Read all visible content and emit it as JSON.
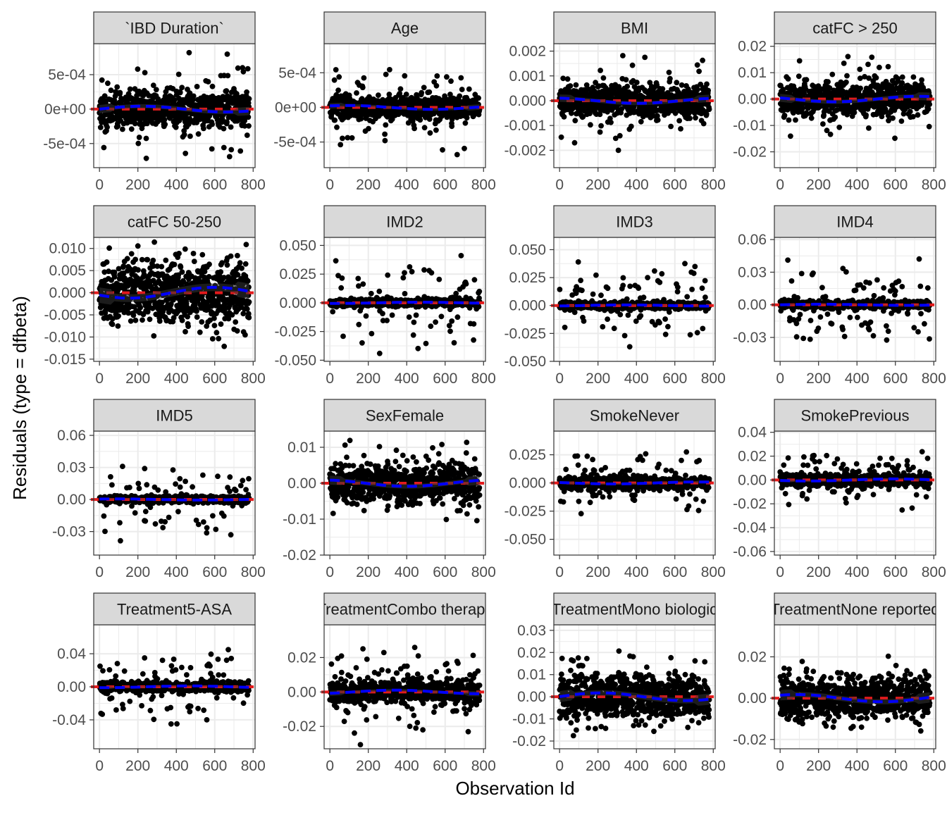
{
  "chart_data": {
    "type": "scatter",
    "xlabel": "Observation Id",
    "ylabel": "Residuals (type = dfbeta)",
    "colors": {
      "points": "#000000",
      "zero_line": "#e31a1c",
      "smooth": "#0000ff",
      "ribbon": "#333333",
      "strip_fill": "#d9d9d9",
      "grid": "#ebebeb",
      "panel_border": "#333333"
    },
    "xlim": [
      -30,
      810
    ],
    "x_ticks": [
      0,
      200,
      400,
      600,
      800
    ],
    "x_tick_labels": [
      "0",
      "200",
      "400",
      "600",
      "800"
    ],
    "n_observations": 780,
    "layout": {
      "rows": 4,
      "cols": 4
    },
    "panels": [
      {
        "title": "`IBD Duration`",
        "ylim": [
          -0.00085,
          0.00095
        ],
        "y_ticks": [
          0.0005,
          0,
          -0.0005
        ],
        "y_tick_labels": [
          "5e-04",
          "0e+00",
          "-5e-04"
        ],
        "core_sd": 0.00012,
        "spread": 0.0009
      },
      {
        "title": "Age",
        "ylim": [
          -0.00087,
          0.00092
        ],
        "y_ticks": [
          0.0005,
          0,
          -0.0005
        ],
        "y_tick_labels": [
          "5e-04",
          "0e+00",
          "-5e-04"
        ],
        "core_sd": 8e-05,
        "spread": 0.0008
      },
      {
        "title": "BMI",
        "ylim": [
          -0.0027,
          0.0023
        ],
        "y_ticks": [
          0.002,
          0.001,
          0,
          -0.001,
          -0.002
        ],
        "y_tick_labels": [
          "0.002",
          "0.001",
          "0.000",
          "-0.001",
          "-0.002"
        ],
        "core_sd": 0.0003,
        "spread": 0.0021
      },
      {
        "title": "catFC > 250",
        "ylim": [
          -0.026,
          0.021
        ],
        "y_ticks": [
          0.02,
          0.01,
          0,
          -0.01,
          -0.02
        ],
        "y_tick_labels": [
          "0.02",
          "0.01",
          "0.00",
          "-0.01",
          "-0.02"
        ],
        "core_sd": 0.003,
        "spread": 0.018
      },
      {
        "title": "catFC 50-250",
        "ylim": [
          -0.0155,
          0.0125
        ],
        "y_ticks": [
          0.01,
          0.005,
          0,
          -0.005,
          -0.01,
          -0.015
        ],
        "y_tick_labels": [
          "0.010",
          "0.005",
          "0.000",
          "-0.005",
          "-0.010",
          "-0.015"
        ],
        "core_sd": 0.0035,
        "spread": 0.012
      },
      {
        "title": "IMD2",
        "ylim": [
          -0.051,
          0.057
        ],
        "y_ticks": [
          0.05,
          0.025,
          0,
          -0.025,
          -0.05
        ],
        "y_tick_labels": [
          "0.050",
          "0.025",
          "0.000",
          "-0.025",
          "-0.050"
        ],
        "core_sd": 0.0015,
        "spread": 0.045
      },
      {
        "title": "IMD3",
        "ylim": [
          -0.05,
          0.061
        ],
        "y_ticks": [
          0.05,
          0.025,
          0,
          -0.025,
          -0.05
        ],
        "y_tick_labels": [
          "0.050",
          "0.025",
          "0.000",
          "-0.025",
          "-0.050"
        ],
        "core_sd": 0.0015,
        "spread": 0.045
      },
      {
        "title": "IMD4",
        "ylim": [
          -0.052,
          0.062
        ],
        "y_ticks": [
          0.06,
          0.03,
          0,
          -0.03
        ],
        "y_tick_labels": [
          "0.06",
          "0.03",
          "0.00",
          "-0.03"
        ],
        "core_sd": 0.0015,
        "spread": 0.045
      },
      {
        "title": "IMD5",
        "ylim": [
          -0.052,
          0.064
        ],
        "y_ticks": [
          0.06,
          0.03,
          0,
          -0.03
        ],
        "y_tick_labels": [
          "0.06",
          "0.03",
          "0.00",
          "-0.03"
        ],
        "core_sd": 0.0015,
        "spread": 0.045
      },
      {
        "title": "SexFemale",
        "ylim": [
          -0.02,
          0.0145
        ],
        "y_ticks": [
          0.01,
          0,
          -0.01,
          -0.02
        ],
        "y_tick_labels": [
          "0.01",
          "0.00",
          "-0.01",
          "-0.02"
        ],
        "core_sd": 0.0025,
        "spread": 0.013
      },
      {
        "title": "SmokeNever",
        "ylim": [
          -0.064,
          0.046
        ],
        "y_ticks": [
          0.025,
          0,
          -0.025,
          -0.05
        ],
        "y_tick_labels": [
          "0.025",
          "0.000",
          "-0.025",
          "-0.050"
        ],
        "core_sd": 0.0025,
        "spread": 0.03
      },
      {
        "title": "SmokePrevious",
        "ylim": [
          -0.063,
          0.041
        ],
        "y_ticks": [
          0.04,
          0.02,
          0,
          -0.02,
          -0.04,
          -0.06
        ],
        "y_tick_labels": [
          "0.04",
          "0.02",
          "0.00",
          "-0.02",
          "-0.04",
          "-0.06"
        ],
        "core_sd": 0.0025,
        "spread": 0.03
      },
      {
        "title": "Treatment5-ASA",
        "ylim": [
          -0.075,
          0.075
        ],
        "y_ticks": [
          0.04,
          0,
          -0.04
        ],
        "y_tick_labels": [
          "0.04",
          "0.00",
          "-0.04"
        ],
        "core_sd": 0.003,
        "spread": 0.06
      },
      {
        "title": "TreatmentCombo therapy",
        "ylim": [
          -0.033,
          0.039
        ],
        "y_ticks": [
          0.02,
          0,
          -0.02
        ],
        "y_tick_labels": [
          "0.02",
          "0.00",
          "-0.02"
        ],
        "core_sd": 0.003,
        "spread": 0.034
      },
      {
        "title": "TreatmentMono biologic",
        "ylim": [
          -0.0235,
          0.0325
        ],
        "y_ticks": [
          0.03,
          0.02,
          0.01,
          0,
          -0.01,
          -0.02
        ],
        "y_tick_labels": [
          "0.03",
          "0.02",
          "0.01",
          "0.00",
          "-0.01",
          "-0.02"
        ],
        "core_sd": 0.005,
        "spread": 0.022
      },
      {
        "title": "TreatmentNone reported",
        "ylim": [
          -0.0245,
          0.0355
        ],
        "y_ticks": [
          0.02,
          0,
          -0.02
        ],
        "y_tick_labels": [
          "0.02",
          "0.00",
          "-0.02"
        ],
        "core_sd": 0.005,
        "spread": 0.022
      }
    ]
  }
}
